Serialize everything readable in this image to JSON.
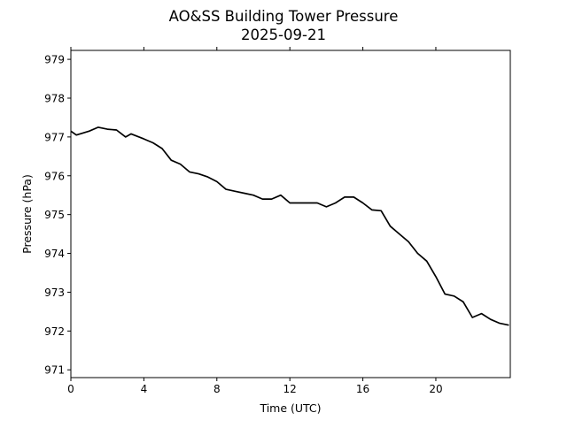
{
  "chart_data": {
    "type": "line",
    "title": "AO&SS Building Tower Pressure",
    "subtitle": "2025-09-21",
    "xlabel": "Time (UTC)",
    "ylabel": "Pressure (hPa)",
    "xlim": [
      0,
      24.08
    ],
    "ylim": [
      970.8,
      979.23
    ],
    "xticks": [
      0,
      4,
      8,
      12,
      16,
      20
    ],
    "xtick_labels": [
      "0",
      "4",
      "8",
      "12",
      "16",
      "20"
    ],
    "yticks": [
      971,
      972,
      973,
      974,
      975,
      976,
      977,
      978,
      979
    ],
    "ytick_labels": [
      "971",
      "972",
      "973",
      "974",
      "975",
      "976",
      "977",
      "978",
      "979"
    ],
    "grid": false,
    "line_color": "#000000",
    "series": [
      {
        "name": "Pressure",
        "x": [
          0,
          0.3,
          1,
          1.5,
          2,
          2.5,
          3,
          3.3,
          4,
          4.5,
          5,
          5.5,
          6,
          6.5,
          7,
          7.5,
          8,
          8.5,
          9,
          9.5,
          10,
          10.5,
          11,
          11.5,
          12,
          12.5,
          13,
          13.5,
          14,
          14.5,
          15,
          15.5,
          16,
          16.5,
          17,
          17.5,
          18,
          18.5,
          19,
          19.5,
          20,
          20.5,
          21,
          21.5,
          22,
          22.5,
          23,
          23.5,
          24
        ],
        "values": [
          977.15,
          977.05,
          977.15,
          977.25,
          977.2,
          977.18,
          977.0,
          977.08,
          976.95,
          976.85,
          976.7,
          976.4,
          976.3,
          976.1,
          976.05,
          975.97,
          975.85,
          975.65,
          975.6,
          975.55,
          975.5,
          975.4,
          975.4,
          975.5,
          975.3,
          975.3,
          975.3,
          975.3,
          975.2,
          975.3,
          975.45,
          975.45,
          975.3,
          975.12,
          975.1,
          974.7,
          974.5,
          974.3,
          974.0,
          973.8,
          973.4,
          972.95,
          972.9,
          972.75,
          972.35,
          972.45,
          972.3,
          972.2,
          972.15
        ]
      }
    ]
  }
}
